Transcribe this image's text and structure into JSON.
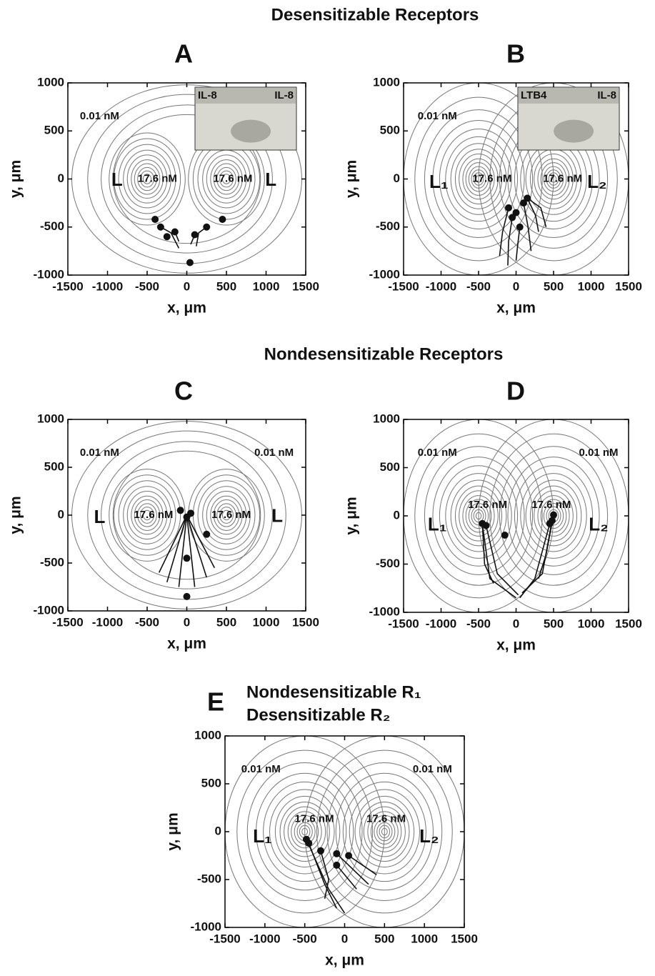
{
  "headings": [
    "Desensitizable Receptors",
    "Nondesensitizable Receptors"
  ],
  "chart_data": [
    {
      "type": "contour",
      "title": "A",
      "xlabel": "x, μm",
      "ylabel": "y, μm",
      "xlim": [
        -1500,
        1500
      ],
      "ylim": [
        -1000,
        1000
      ],
      "xticks": [
        -1500,
        -1000,
        -500,
        0,
        500,
        1000,
        1500
      ],
      "yticks": [
        -1000,
        -500,
        0,
        500,
        1000
      ],
      "merged": true,
      "sources": [
        {
          "x": -500,
          "y": 0
        },
        {
          "x": 500,
          "y": 0
        }
      ],
      "inset": [
        "IL-8",
        "IL-8"
      ],
      "annotations": [
        {
          "text": "0.01 nM",
          "x": -1100,
          "y": 650
        },
        {
          "text": "17.6 nM",
          "x": -370,
          "y": 0
        },
        {
          "text": "17.6 nM",
          "x": 580,
          "y": 0
        },
        {
          "text": "L",
          "x": -880,
          "y": -20
        },
        {
          "text": "L",
          "x": 1060,
          "y": -20
        }
      ],
      "cells": {
        "x": [
          -400,
          -330,
          -250,
          -150,
          100,
          250,
          450,
          40
        ],
        "y": [
          -420,
          -500,
          -600,
          -550,
          -580,
          -500,
          -420,
          -870
        ]
      },
      "tracks": [
        {
          "x": [
            -330,
            -200,
            -100
          ],
          "y": [
            -500,
            -560,
            -720
          ]
        },
        {
          "x": [
            -150,
            -100
          ],
          "y": [
            -550,
            -650
          ]
        },
        {
          "x": [
            250,
            150,
            120
          ],
          "y": [
            -500,
            -560,
            -700
          ]
        },
        {
          "x": [
            100,
            50
          ],
          "y": [
            -580,
            -680
          ]
        }
      ]
    },
    {
      "type": "contour",
      "title": "B",
      "xlabel": "x, μm",
      "ylabel": "y, μm",
      "xlim": [
        -1500,
        1500
      ],
      "ylim": [
        -1000,
        1000
      ],
      "xticks": [
        -1500,
        -1000,
        -500,
        0,
        500,
        1000,
        1500
      ],
      "yticks": [
        -1000,
        -500,
        0,
        500,
        1000
      ],
      "merged": false,
      "sources": [
        {
          "x": -500,
          "y": 0
        },
        {
          "x": 500,
          "y": 0
        }
      ],
      "inset": [
        "LTB4",
        "IL-8"
      ],
      "annotations": [
        {
          "text": "0.01 nM",
          "x": -1050,
          "y": 650
        },
        {
          "text": "17.6 nM",
          "x": -320,
          "y": 0
        },
        {
          "text": "17.6 nM",
          "x": 620,
          "y": 0
        },
        {
          "text": "L₁",
          "x": -1030,
          "y": -40
        },
        {
          "text": "L₂",
          "x": 1080,
          "y": -40
        }
      ],
      "cells": {
        "x": [
          -100,
          0,
          100,
          150,
          -50,
          50
        ],
        "y": [
          -300,
          -350,
          -250,
          -200,
          -400,
          -500
        ]
      },
      "tracks": [
        {
          "x": [
            -100,
            -180,
            -220
          ],
          "y": [
            -300,
            -550,
            -800
          ]
        },
        {
          "x": [
            -50,
            -100,
            -110
          ],
          "y": [
            -400,
            -650,
            -900
          ]
        },
        {
          "x": [
            50,
            20,
            0
          ],
          "y": [
            -500,
            -700,
            -850
          ]
        },
        {
          "x": [
            100,
            160,
            200
          ],
          "y": [
            -250,
            -500,
            -750
          ]
        },
        {
          "x": [
            150,
            260,
            300
          ],
          "y": [
            -200,
            -380,
            -550
          ]
        },
        {
          "x": [
            150,
            330,
            400
          ],
          "y": [
            -200,
            -300,
            -500
          ]
        }
      ]
    },
    {
      "type": "contour",
      "title": "C",
      "xlabel": "x, μm",
      "ylabel": "y, μm",
      "xlim": [
        -1500,
        1500
      ],
      "ylim": [
        -1000,
        1000
      ],
      "xticks": [
        -1500,
        -1000,
        -500,
        0,
        500,
        1000,
        1500
      ],
      "yticks": [
        -1000,
        -500,
        0,
        500,
        1000
      ],
      "merged": true,
      "sources": [
        {
          "x": -500,
          "y": 0
        },
        {
          "x": 500,
          "y": 0
        }
      ],
      "annotations": [
        {
          "text": "0.01 nM",
          "x": -1100,
          "y": 650
        },
        {
          "text": "0.01 nM",
          "x": 1100,
          "y": 650
        },
        {
          "text": "17.6 nM",
          "x": -420,
          "y": 0
        },
        {
          "text": "17.6 nM",
          "x": 560,
          "y": 0
        },
        {
          "text": "L",
          "x": -1100,
          "y": -30
        },
        {
          "text": "L",
          "x": 1140,
          "y": -20
        }
      ],
      "cells": {
        "x": [
          -80,
          0,
          50,
          250,
          0,
          0
        ],
        "y": [
          50,
          -20,
          20,
          -200,
          -450,
          -850
        ]
      },
      "tracks": [
        {
          "x": [
            0,
            -350
          ],
          "y": [
            0,
            -600
          ]
        },
        {
          "x": [
            0,
            -250
          ],
          "y": [
            0,
            -700
          ]
        },
        {
          "x": [
            0,
            -100
          ],
          "y": [
            0,
            -750
          ]
        },
        {
          "x": [
            0,
            100
          ],
          "y": [
            0,
            -750
          ]
        },
        {
          "x": [
            0,
            250
          ],
          "y": [
            0,
            -650
          ]
        },
        {
          "x": [
            0,
            350
          ],
          "y": [
            0,
            -550
          ]
        }
      ]
    },
    {
      "type": "contour",
      "title": "D",
      "xlabel": "x, μm",
      "ylabel": "y, μm",
      "xlim": [
        -1500,
        1500
      ],
      "ylim": [
        -1000,
        1000
      ],
      "xticks": [
        -1500,
        -1000,
        -500,
        0,
        500,
        1000,
        1500
      ],
      "yticks": [
        -1000,
        -500,
        0,
        500,
        1000
      ],
      "merged": false,
      "sources": [
        {
          "x": -500,
          "y": 0
        },
        {
          "x": 500,
          "y": 0
        }
      ],
      "annotations": [
        {
          "text": "0.01 nM",
          "x": -1050,
          "y": 650
        },
        {
          "text": "0.01 nM",
          "x": 1100,
          "y": 650
        },
        {
          "text": "17.6 nM",
          "x": -380,
          "y": 110
        },
        {
          "text": "17.6 nM",
          "x": 470,
          "y": 110
        },
        {
          "text": "L₁",
          "x": -1050,
          "y": -100
        },
        {
          "text": "L₂",
          "x": 1100,
          "y": -100
        }
      ],
      "cells": {
        "x": [
          -450,
          -400,
          -150,
          450,
          480,
          500
        ],
        "y": [
          -80,
          -100,
          -200,
          -80,
          -50,
          10
        ]
      },
      "tracks": [
        {
          "x": [
            -450,
            -350,
            0
          ],
          "y": [
            -80,
            -650,
            -850
          ]
        },
        {
          "x": [
            -400,
            -250,
            30
          ],
          "y": [
            -100,
            -600,
            -820
          ]
        },
        {
          "x": [
            -450,
            -420,
            -300
          ],
          "y": [
            -80,
            -500,
            -700
          ]
        },
        {
          "x": [
            450,
            250,
            50
          ],
          "y": [
            -80,
            -650,
            -850
          ]
        },
        {
          "x": [
            480,
            350,
            80
          ],
          "y": [
            -50,
            -600,
            -800
          ]
        },
        {
          "x": [
            500,
            400,
            300
          ],
          "y": [
            10,
            -400,
            -650
          ]
        }
      ]
    },
    {
      "type": "contour",
      "title": "E",
      "subtitle": [
        "Nondesensitizable R₁",
        "Desensitizable R₂"
      ],
      "xlabel": "x, μm",
      "ylabel": "y, μm",
      "xlim": [
        -1500,
        1500
      ],
      "ylim": [
        -1000,
        1000
      ],
      "xticks": [
        -1500,
        -1000,
        -500,
        0,
        500,
        1000,
        1500
      ],
      "yticks": [
        -1000,
        -500,
        0,
        500,
        1000
      ],
      "merged": false,
      "sources": [
        {
          "x": -500,
          "y": 0
        },
        {
          "x": 500,
          "y": 0
        }
      ],
      "annotations": [
        {
          "text": "0.01 nM",
          "x": -1050,
          "y": 650
        },
        {
          "text": "0.01 nM",
          "x": 1100,
          "y": 650
        },
        {
          "text": "17.6 nM",
          "x": -380,
          "y": 130
        },
        {
          "text": "17.6 nM",
          "x": 520,
          "y": 130
        },
        {
          "text": "L₁",
          "x": -1030,
          "y": -60
        },
        {
          "text": "L₂",
          "x": 1060,
          "y": -60
        }
      ],
      "cells": {
        "x": [
          -480,
          -450,
          -300,
          -100,
          50,
          -100
        ],
        "y": [
          -80,
          -120,
          -200,
          -230,
          -250,
          -350
        ]
      },
      "tracks": [
        {
          "x": [
            -480,
            -200,
            0
          ],
          "y": [
            -80,
            -600,
            -850
          ]
        },
        {
          "x": [
            -450,
            -250,
            -100
          ],
          "y": [
            -120,
            -550,
            -800
          ]
        },
        {
          "x": [
            -300,
            -200,
            -250
          ],
          "y": [
            -200,
            -500,
            -700
          ]
        },
        {
          "x": [
            -100,
            300
          ],
          "y": [
            -230,
            -550
          ]
        },
        {
          "x": [
            50,
            400
          ],
          "y": [
            -250,
            -450
          ]
        },
        {
          "x": [
            -100,
            150
          ],
          "y": [
            -350,
            -600
          ]
        }
      ]
    }
  ]
}
